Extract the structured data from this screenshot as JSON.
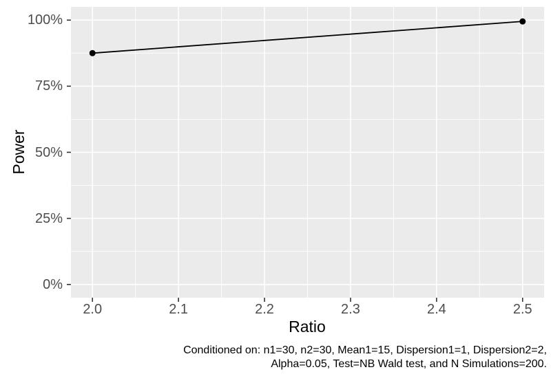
{
  "chart_data": {
    "type": "line",
    "title": "",
    "xlabel": "Ratio",
    "ylabel": "Power",
    "xlim": [
      2.0,
      2.5
    ],
    "ylim_pct": [
      0,
      100
    ],
    "axis_expansion": 0.05,
    "grid": {
      "major": true,
      "minor": true
    },
    "legend": "none",
    "x_ticks": [
      {
        "value": 2.0,
        "label": "2.0"
      },
      {
        "value": 2.1,
        "label": "2.1"
      },
      {
        "value": 2.2,
        "label": "2.2"
      },
      {
        "value": 2.3,
        "label": "2.3"
      },
      {
        "value": 2.4,
        "label": "2.4"
      },
      {
        "value": 2.5,
        "label": "2.5"
      }
    ],
    "y_ticks": [
      {
        "value": 0,
        "label": "0%"
      },
      {
        "value": 25,
        "label": "25%"
      },
      {
        "value": 50,
        "label": "50%"
      },
      {
        "value": 75,
        "label": "75%"
      },
      {
        "value": 100,
        "label": "100%"
      }
    ],
    "series": [
      {
        "name": "Power",
        "points": [
          {
            "x": 2.0,
            "y_pct": 87.5
          },
          {
            "x": 2.5,
            "y_pct": 99.5
          }
        ]
      }
    ],
    "caption": {
      "line1": "Conditioned on: n1=30, n2=30, Mean1=15, Dispersion1=1, Dispersion2=2,",
      "line2": "Alpha=0.05, Test=NB Wald test, and N Simulations=200."
    }
  },
  "colors": {
    "figure_background": "#FFFFFF",
    "panel_background": "#EBEBEB",
    "grid": "#FFFFFF",
    "line": "#000000",
    "point": "#000000",
    "tick_mark": "#333333",
    "tick_label": "#4D4D4D",
    "axis_title": "#000000",
    "caption": "#000000"
  }
}
